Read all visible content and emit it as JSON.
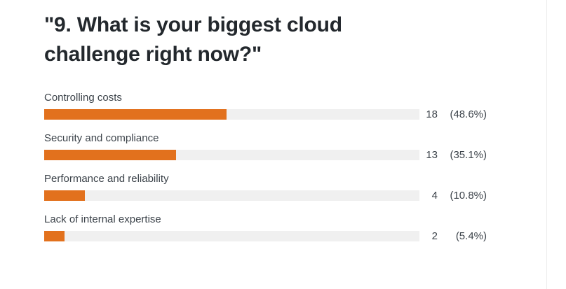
{
  "title": {
    "line1": "\"9. What is your biggest cloud",
    "line2": "challenge right now?\"",
    "full": "\"9. What is your biggest cloud challenge right now?\""
  },
  "colors": {
    "bar_fill": "#e2711d",
    "bar_track": "#f0f0f0",
    "title_text": "#23282d",
    "label_text": "#3c434a"
  },
  "rows": [
    {
      "label": "Controlling costs",
      "count": "18",
      "percent_display": "(48.6%)",
      "percent": 48.6
    },
    {
      "label": "Security and compliance",
      "count": "13",
      "percent_display": "(35.1%)",
      "percent": 35.1
    },
    {
      "label": "Performance and reliability",
      "count": "4",
      "percent_display": "(10.8%)",
      "percent": 10.8
    },
    {
      "label": "Lack of internal expertise",
      "count": "2",
      "percent_display": "(5.4%)",
      "percent": 5.4
    }
  ],
  "chart_data": {
    "type": "bar",
    "orientation": "horizontal",
    "title": "\"9. What is your biggest cloud challenge right now?\"",
    "categories": [
      "Controlling costs",
      "Security and compliance",
      "Performance and reliability",
      "Lack of internal expertise"
    ],
    "values": [
      18,
      13,
      4,
      2
    ],
    "percents": [
      48.6,
      35.1,
      10.8,
      5.4
    ],
    "value_labels": [
      "18  (48.6%)",
      "13  (35.1%)",
      "4  (10.8%)",
      "2  (5.4%)"
    ],
    "xlim": [
      0,
      100
    ],
    "grid": false,
    "legend": false,
    "bar_color": "#e2711d",
    "track_color": "#f0f0f0"
  }
}
